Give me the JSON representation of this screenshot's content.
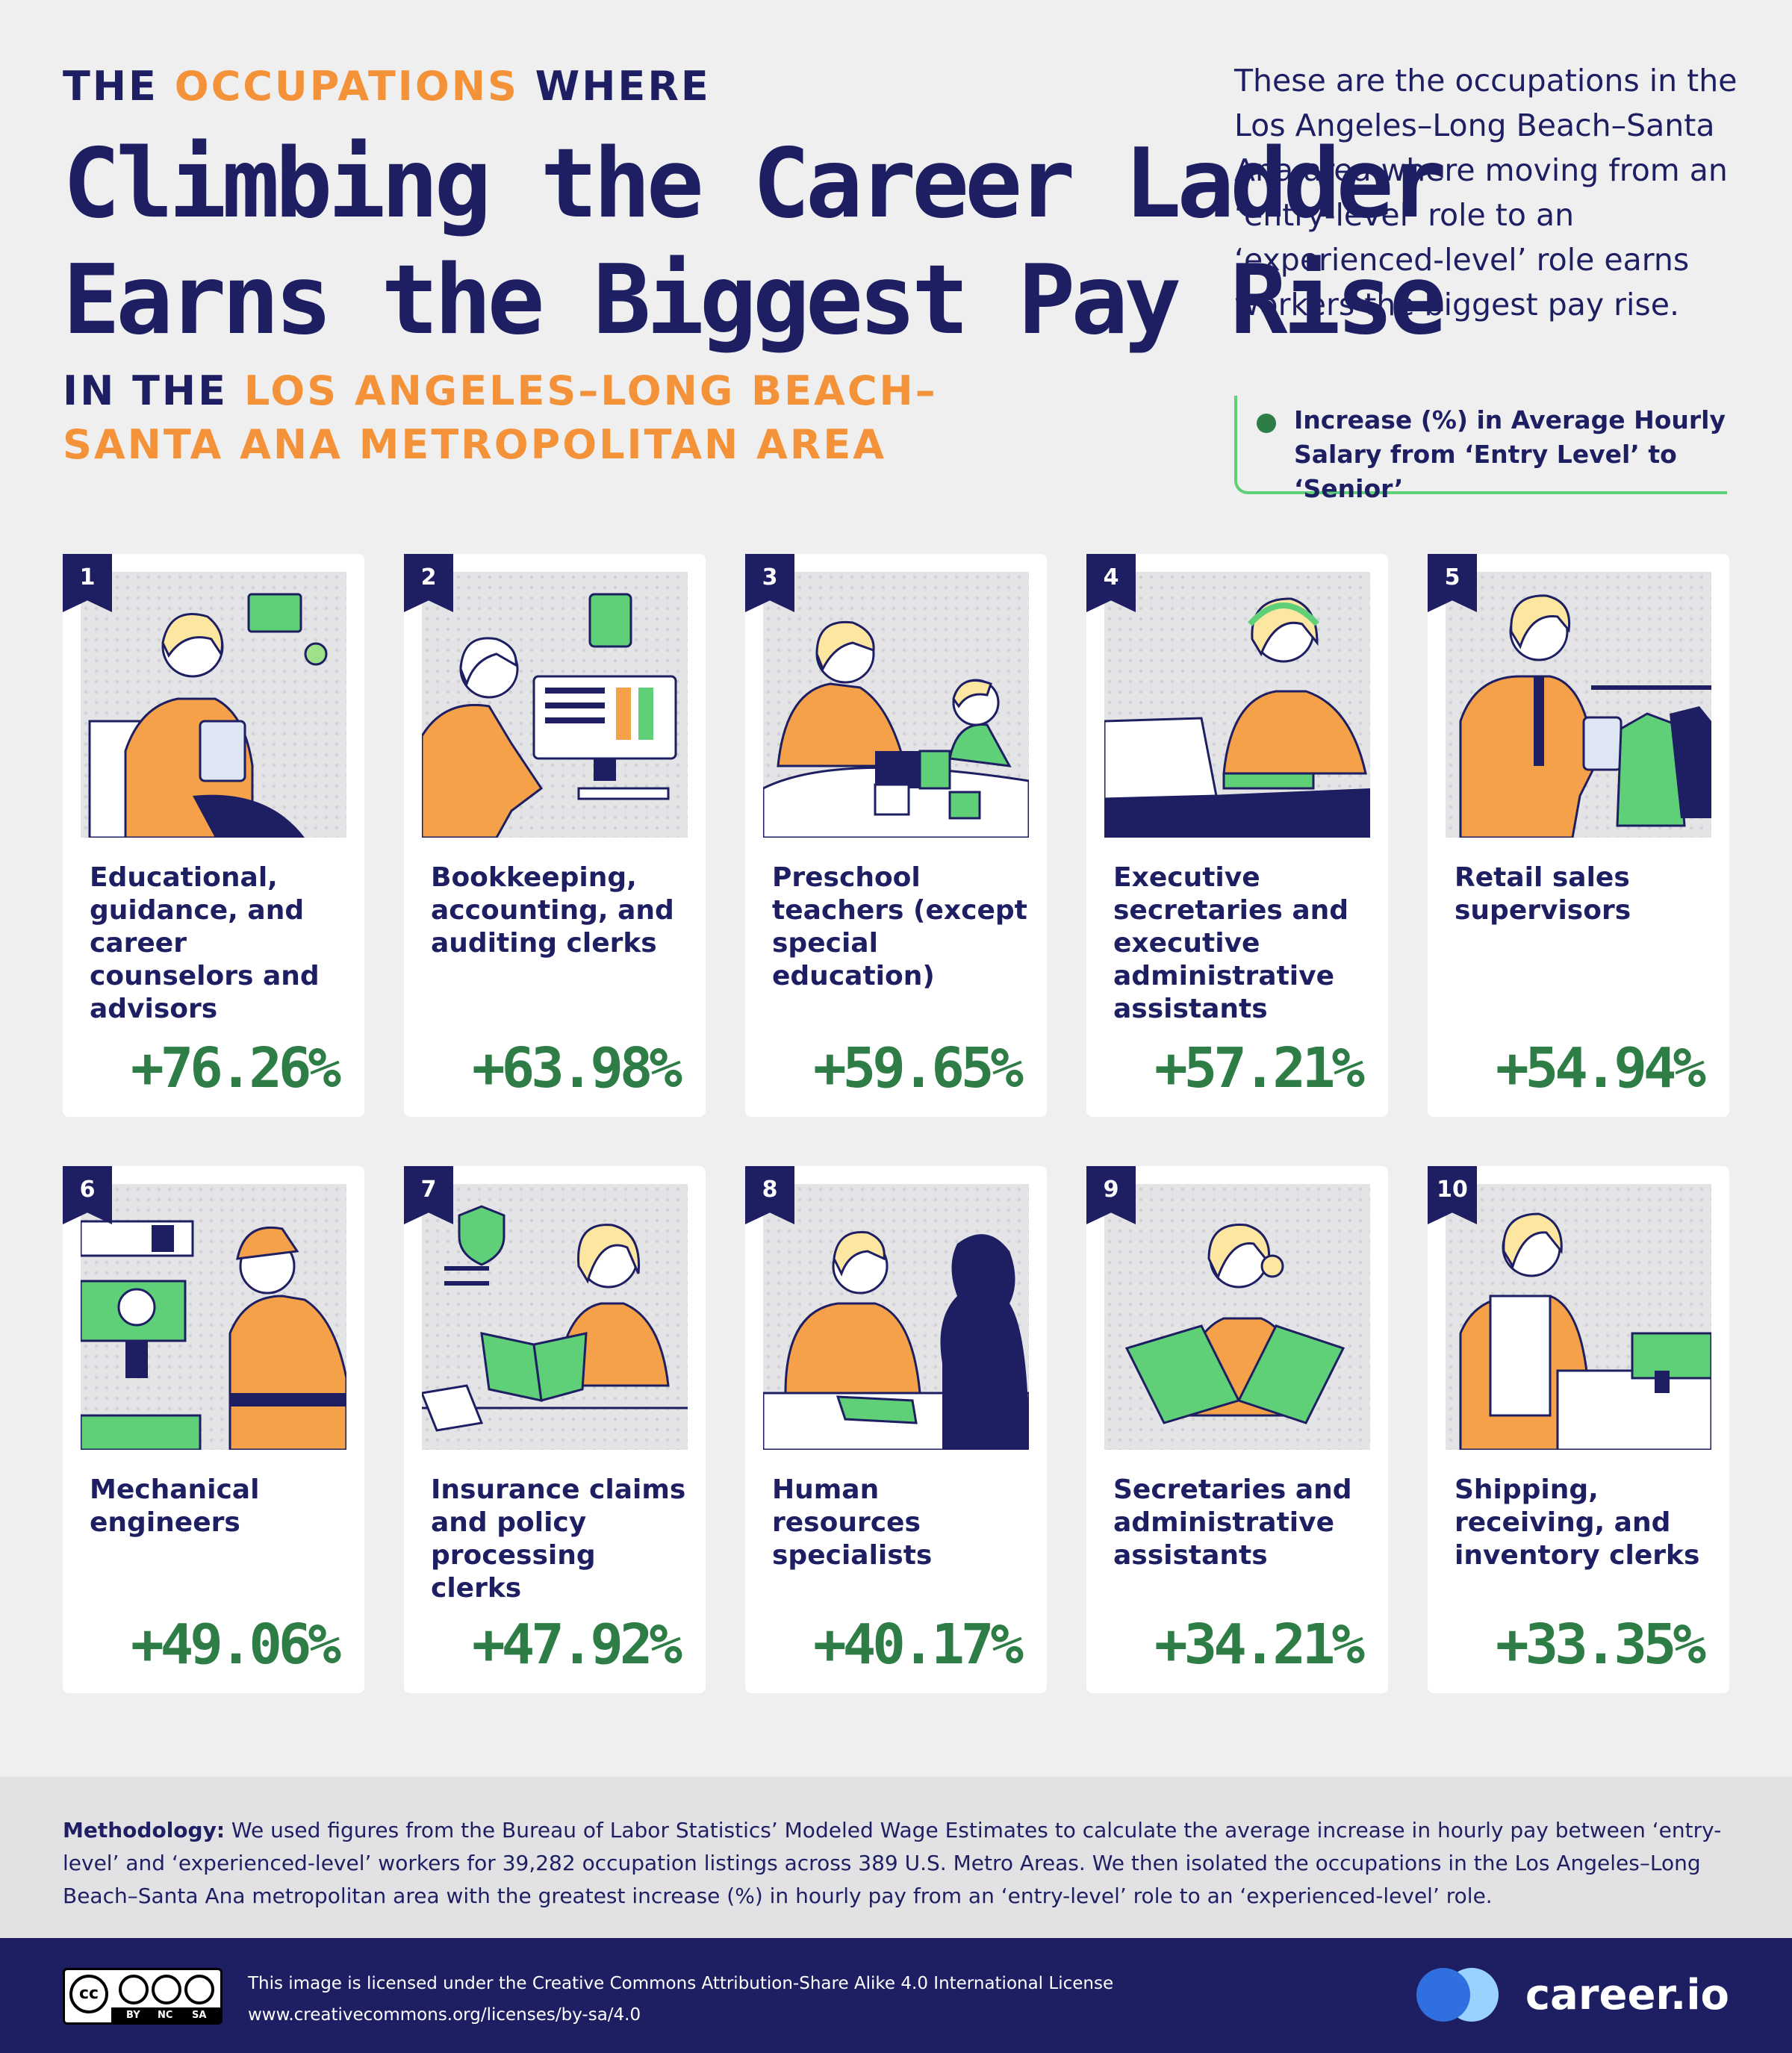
{
  "header": {
    "kicker_pre": "THE ",
    "kicker_highlight": "OCCUPATIONS",
    "kicker_post": " WHERE",
    "headline_line1": "Climbing the Career Ladder",
    "headline_line2": "Earns the Biggest Pay Rise",
    "region_pre": "IN THE ",
    "region_highlight_1": "LOS ANGELES–LONG BEACH–",
    "region_highlight_2": "SANTA ANA METROPOLITAN AREA"
  },
  "intro": "These are the occupations in the Los Angeles–Long Beach–Santa Ana area where moving from an ‘entry-level’ role to an ‘experienced-level’ role earns workers the biggest pay rise.",
  "legend": {
    "line1": "Increase (%) in Average Hourly",
    "line2": "Salary from ‘Entry Level’ to ‘Senior’",
    "color": "#2e7d46"
  },
  "occupations": [
    {
      "rank": "1",
      "title": "Educational, guidance, and career counselors and advisors",
      "increase": "+76.26%",
      "icon": "counselor-illustration"
    },
    {
      "rank": "2",
      "title": "Bookkeeping, accounting, and auditing clerks",
      "increase": "+63.98%",
      "icon": "bookkeeper-illustration"
    },
    {
      "rank": "3",
      "title": "Preschool teachers (except special education)",
      "increase": "+59.65%",
      "icon": "teacher-illustration"
    },
    {
      "rank": "4",
      "title": "Executive secretaries and executive administrative assistants",
      "increase": "+57.21%",
      "icon": "secretary-illustration"
    },
    {
      "rank": "5",
      "title": "Retail sales supervisors",
      "increase": "+54.94%",
      "icon": "retail-illustration"
    },
    {
      "rank": "6",
      "title": "Mechanical engineers",
      "increase": "+49.06%",
      "icon": "engineer-illustration"
    },
    {
      "rank": "7",
      "title": "Insurance claims and policy processing clerks",
      "increase": "+47.92%",
      "icon": "insurance-illustration"
    },
    {
      "rank": "8",
      "title": "Human resources specialists",
      "increase": "+40.17%",
      "icon": "hr-illustration"
    },
    {
      "rank": "9",
      "title": "Secretaries and administrative assistants",
      "increase": "+34.21%",
      "icon": "admin-illustration"
    },
    {
      "rank": "10",
      "title": "Shipping, receiving, and inventory clerks",
      "increase": "+33.35%",
      "icon": "shipping-illustration"
    }
  ],
  "methodology": {
    "label": "Methodology:",
    "text": "We used figures from the Bureau of Labor Statistics’ Modeled Wage Estimates to calculate the average increase in hourly pay between ‘entry-level’ and ‘experienced-level’ workers for 39,282 occupation listings across 389 U.S. Metro Areas. We then isolated the occupations in the Los Angeles–Long Beach–Santa Ana metropolitan area with the greatest increase (%) in hourly pay from an ‘entry-level’ role to an ‘experienced-level’ role."
  },
  "footer": {
    "license_line1": "This image is licensed under the Creative Commons Attribution-Share Alike 4.0 International License",
    "license_line2": "www.creativecommons.org/licenses/by-sa/4.0",
    "cc_text": "cc",
    "cc_by": "BY",
    "cc_nc": "NC",
    "cc_sa": "SA",
    "brand": "career.io"
  },
  "colors": {
    "navy": "#1e1f63",
    "orange": "#f4923a",
    "green": "#2e7d46",
    "light_green": "#5fcf78",
    "brand_blue": "#2f6fe0"
  }
}
